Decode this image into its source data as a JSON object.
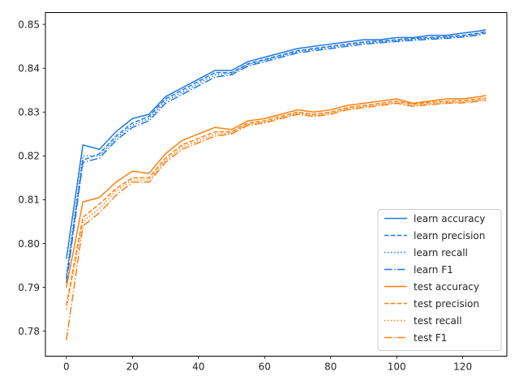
{
  "chart_data": {
    "type": "line",
    "title": "",
    "xlabel": "",
    "ylabel": "",
    "xlim": [
      -6.35,
      133.35
    ],
    "ylim": [
      0.7743,
      0.8527
    ],
    "x_ticks": [
      0,
      20,
      40,
      60,
      80,
      100,
      120
    ],
    "y_ticks": [
      0.78,
      0.79,
      0.8,
      0.81,
      0.82,
      0.83,
      0.84,
      0.85
    ],
    "y_tick_labels": [
      "0.78",
      "0.79",
      "0.80",
      "0.81",
      "0.82",
      "0.83",
      "0.84",
      "0.85"
    ],
    "grid": false,
    "legend_position": "lower-right",
    "colors": {
      "learn": "#1f77e4",
      "test": "#ff7f0e"
    },
    "x": [
      0,
      5,
      10,
      15,
      20,
      25,
      30,
      35,
      40,
      45,
      50,
      55,
      60,
      65,
      70,
      75,
      80,
      85,
      90,
      95,
      100,
      105,
      110,
      115,
      120,
      125,
      127
    ],
    "series": [
      {
        "name": "learn accuracy",
        "style": "solid",
        "color": "#1f77e4",
        "values": [
          0.7965,
          0.8225,
          0.8215,
          0.8255,
          0.8285,
          0.8295,
          0.8335,
          0.8355,
          0.8375,
          0.8395,
          0.8395,
          0.8415,
          0.8425,
          0.8435,
          0.8445,
          0.845,
          0.8455,
          0.846,
          0.8465,
          0.8465,
          0.847,
          0.847,
          0.8475,
          0.8475,
          0.848,
          0.8485,
          0.8488
        ]
      },
      {
        "name": "learn precision",
        "style": "dashed",
        "color": "#1f77e4",
        "values": [
          0.792,
          0.819,
          0.8205,
          0.8245,
          0.8275,
          0.829,
          0.833,
          0.835,
          0.837,
          0.839,
          0.839,
          0.841,
          0.842,
          0.843,
          0.844,
          0.8445,
          0.845,
          0.8455,
          0.846,
          0.8462,
          0.8465,
          0.8468,
          0.847,
          0.8472,
          0.8475,
          0.848,
          0.8484
        ]
      },
      {
        "name": "learn recall",
        "style": "dotted",
        "color": "#1f77e4",
        "values": [
          0.793,
          0.82,
          0.82,
          0.824,
          0.827,
          0.8285,
          0.8325,
          0.8345,
          0.8365,
          0.8385,
          0.8388,
          0.8408,
          0.8418,
          0.8428,
          0.8438,
          0.8443,
          0.8448,
          0.8453,
          0.8458,
          0.846,
          0.8463,
          0.8466,
          0.8468,
          0.847,
          0.8473,
          0.8478,
          0.8482
        ]
      },
      {
        "name": "learn F1",
        "style": "dashdot",
        "color": "#1f77e4",
        "values": [
          0.791,
          0.8185,
          0.8195,
          0.8235,
          0.8265,
          0.828,
          0.832,
          0.834,
          0.836,
          0.838,
          0.8385,
          0.8405,
          0.8415,
          0.8425,
          0.8435,
          0.844,
          0.8445,
          0.845,
          0.8455,
          0.8458,
          0.8461,
          0.8464,
          0.8466,
          0.8468,
          0.8471,
          0.8476,
          0.848
        ]
      },
      {
        "name": "test accuracy",
        "style": "solid",
        "color": "#ff7f0e",
        "values": [
          0.79,
          0.8095,
          0.8105,
          0.814,
          0.8165,
          0.816,
          0.8205,
          0.8235,
          0.825,
          0.8265,
          0.826,
          0.828,
          0.8285,
          0.8295,
          0.8305,
          0.83,
          0.8305,
          0.8315,
          0.832,
          0.8325,
          0.833,
          0.832,
          0.8325,
          0.833,
          0.833,
          0.8335,
          0.8338
        ]
      },
      {
        "name": "test precision",
        "style": "dashed",
        "color": "#ff7f0e",
        "values": [
          0.786,
          0.806,
          0.809,
          0.8125,
          0.815,
          0.815,
          0.8195,
          0.8225,
          0.824,
          0.8255,
          0.8255,
          0.8275,
          0.828,
          0.829,
          0.83,
          0.8295,
          0.83,
          0.831,
          0.8315,
          0.832,
          0.8325,
          0.8318,
          0.8322,
          0.8325,
          0.8326,
          0.833,
          0.8332
        ]
      },
      {
        "name": "test recall",
        "style": "dotted",
        "color": "#ff7f0e",
        "values": [
          0.785,
          0.805,
          0.808,
          0.812,
          0.8145,
          0.8145,
          0.819,
          0.822,
          0.8235,
          0.825,
          0.8252,
          0.8272,
          0.8277,
          0.8287,
          0.8297,
          0.8292,
          0.8297,
          0.8307,
          0.8312,
          0.8317,
          0.8322,
          0.8315,
          0.8319,
          0.8322,
          0.8323,
          0.8327,
          0.8329
        ]
      },
      {
        "name": "test F1",
        "style": "dashdot",
        "color": "#ff7f0e",
        "values": [
          0.778,
          0.804,
          0.807,
          0.811,
          0.814,
          0.814,
          0.8185,
          0.8215,
          0.823,
          0.8245,
          0.825,
          0.827,
          0.8275,
          0.8285,
          0.8295,
          0.829,
          0.8295,
          0.8305,
          0.831,
          0.8315,
          0.832,
          0.8313,
          0.8317,
          0.832,
          0.8321,
          0.8325,
          0.8327
        ]
      }
    ]
  }
}
